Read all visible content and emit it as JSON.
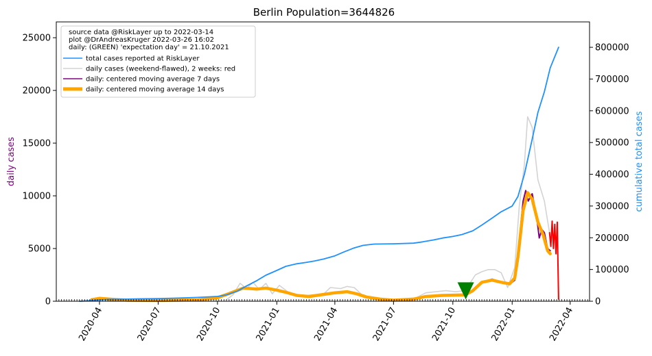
{
  "chart_data": {
    "type": "line",
    "title": "Berlin Population=3644826",
    "ylabel_left": "daily cases",
    "ylabel_right": "cumulative total cases",
    "ylim_left": [
      0,
      26500
    ],
    "ylim_right": [
      0,
      880000
    ],
    "yticks_left": [
      0,
      5000,
      10000,
      15000,
      20000,
      25000
    ],
    "yticks_right": [
      0,
      100000,
      200000,
      300000,
      400000,
      500000,
      600000,
      700000,
      800000
    ],
    "xlim": [
      "2020-01-25",
      "2022-05-01"
    ],
    "xtick_labels": [
      "2020-04",
      "2020-07",
      "2020-10",
      "2021-01",
      "2021-04",
      "2021-07",
      "2021-10",
      "2022-01",
      "2022-04"
    ],
    "legend": {
      "position": "upper-left",
      "header_lines": [
        "source data @RiskLayer up to 2022-03-14",
        "plot @DrAndreasKruger 2022-03-26 16:02",
        "daily: (GREEN) 'expectation day' = 21.10.2021"
      ],
      "entries": [
        {
          "label": "total cases reported at RiskLayer",
          "color": "#1e90ff",
          "width": 1.6
        },
        {
          "label": "daily cases (weekend-flawed), 2 weeks: red",
          "color": "#d3d3d3",
          "width": 1.6
        },
        {
          "label": "daily: centered moving average 7 days",
          "color": "#800080",
          "width": 1.6
        },
        {
          "label": "daily: centered moving average 14 days",
          "color": "#ffa500",
          "width": 5
        }
      ]
    },
    "colors": {
      "total": "#1e90ff",
      "daily": "#d3d3d3",
      "daily_recent": "#ff0000",
      "ma7": "#800080",
      "ma14": "#ffa500",
      "marker": "#008000",
      "left_label": "#800080",
      "right_label": "#1e90ff"
    },
    "expectation_marker": {
      "date": "2021-10-21",
      "value": 950
    },
    "series": [
      {
        "name": "total cases reported at RiskLayer",
        "axis": "right",
        "points": [
          [
            "2020-03-01",
            100
          ],
          [
            "2020-03-15",
            1500
          ],
          [
            "2020-04-01",
            4000
          ],
          [
            "2020-04-15",
            5500
          ],
          [
            "2020-05-01",
            6300
          ],
          [
            "2020-06-01",
            7500
          ],
          [
            "2020-07-01",
            8500
          ],
          [
            "2020-08-01",
            10000
          ],
          [
            "2020-09-01",
            12000
          ],
          [
            "2020-10-01",
            15000
          ],
          [
            "2020-10-15",
            20000
          ],
          [
            "2020-11-01",
            32000
          ],
          [
            "2020-11-15",
            48000
          ],
          [
            "2020-12-01",
            65000
          ],
          [
            "2020-12-15",
            82000
          ],
          [
            "2021-01-01",
            97000
          ],
          [
            "2021-01-15",
            110000
          ],
          [
            "2021-02-01",
            118000
          ],
          [
            "2021-02-15",
            122000
          ],
          [
            "2021-03-01",
            127000
          ],
          [
            "2021-03-15",
            133000
          ],
          [
            "2021-04-01",
            143000
          ],
          [
            "2021-04-15",
            155000
          ],
          [
            "2021-05-01",
            168000
          ],
          [
            "2021-05-15",
            176000
          ],
          [
            "2021-06-01",
            180000
          ],
          [
            "2021-07-01",
            181000
          ],
          [
            "2021-08-01",
            183000
          ],
          [
            "2021-08-15",
            187000
          ],
          [
            "2021-09-01",
            193000
          ],
          [
            "2021-09-15",
            199000
          ],
          [
            "2021-10-01",
            204000
          ],
          [
            "2021-10-15",
            210000
          ],
          [
            "2021-11-01",
            222000
          ],
          [
            "2021-11-15",
            240000
          ],
          [
            "2021-12-01",
            262000
          ],
          [
            "2021-12-15",
            282000
          ],
          [
            "2022-01-01",
            300000
          ],
          [
            "2022-01-10",
            330000
          ],
          [
            "2022-01-20",
            400000
          ],
          [
            "2022-02-01",
            510000
          ],
          [
            "2022-02-10",
            595000
          ],
          [
            "2022-02-20",
            660000
          ],
          [
            "2022-03-01",
            735000
          ],
          [
            "2022-03-14",
            800000
          ]
        ]
      },
      {
        "name": "daily cases (weekend-flawed), 2 weeks: red",
        "axis": "left",
        "points": [
          [
            "2020-10-15",
            150
          ],
          [
            "2020-10-25",
            600
          ],
          [
            "2020-11-05",
            1700
          ],
          [
            "2020-11-15",
            1200
          ],
          [
            "2020-11-25",
            1800
          ],
          [
            "2020-12-05",
            1100
          ],
          [
            "2020-12-15",
            1700
          ],
          [
            "2020-12-25",
            700
          ],
          [
            "2021-01-05",
            1500
          ],
          [
            "2021-01-20",
            800
          ],
          [
            "2021-02-05",
            500
          ],
          [
            "2021-02-25",
            600
          ],
          [
            "2021-03-15",
            700
          ],
          [
            "2021-03-25",
            1300
          ],
          [
            "2021-04-10",
            1200
          ],
          [
            "2021-04-20",
            1400
          ],
          [
            "2021-05-01",
            1300
          ],
          [
            "2021-05-15",
            500
          ],
          [
            "2021-06-01",
            300
          ],
          [
            "2021-07-01",
            150
          ],
          [
            "2021-08-01",
            200
          ],
          [
            "2021-08-20",
            800
          ],
          [
            "2021-09-05",
            900
          ],
          [
            "2021-09-20",
            1000
          ],
          [
            "2021-10-05",
            900
          ],
          [
            "2021-10-20",
            1000
          ],
          [
            "2021-11-05",
            2500
          ],
          [
            "2021-11-15",
            2800
          ],
          [
            "2021-11-25",
            3000
          ],
          [
            "2021-12-05",
            3000
          ],
          [
            "2021-12-15",
            2700
          ],
          [
            "2021-12-25",
            1300
          ],
          [
            "2022-01-05",
            3200
          ],
          [
            "2022-01-12",
            9000
          ],
          [
            "2022-01-20",
            13000
          ],
          [
            "2022-01-25",
            17500
          ],
          [
            "2022-02-01",
            16500
          ],
          [
            "2022-02-10",
            11500
          ],
          [
            "2022-02-20",
            9500
          ],
          [
            "2022-02-28",
            6500
          ]
        ]
      },
      {
        "name": "daily cases, last 2 weeks",
        "axis": "left",
        "points": [
          [
            "2022-02-28",
            6500
          ],
          [
            "2022-03-02",
            5200
          ],
          [
            "2022-03-04",
            7600
          ],
          [
            "2022-03-06",
            5000
          ],
          [
            "2022-03-08",
            7300
          ],
          [
            "2022-03-10",
            4500
          ],
          [
            "2022-03-12",
            7500
          ],
          [
            "2022-03-13",
            3500
          ],
          [
            "2022-03-14",
            200
          ]
        ]
      },
      {
        "name": "daily: centered moving average 7 days",
        "axis": "left",
        "points": [
          [
            "2020-03-20",
            150
          ],
          [
            "2020-04-01",
            280
          ],
          [
            "2020-04-20",
            200
          ],
          [
            "2020-05-15",
            100
          ],
          [
            "2020-07-01",
            70
          ],
          [
            "2020-09-01",
            130
          ],
          [
            "2020-10-01",
            350
          ],
          [
            "2020-10-20",
            800
          ],
          [
            "2020-11-10",
            1300
          ],
          [
            "2020-12-01",
            1200
          ],
          [
            "2020-12-15",
            1300
          ],
          [
            "2021-01-01",
            1100
          ],
          [
            "2021-01-15",
            900
          ],
          [
            "2021-02-01",
            550
          ],
          [
            "2021-02-20",
            450
          ],
          [
            "2021-03-15",
            700
          ],
          [
            "2021-04-01",
            850
          ],
          [
            "2021-04-20",
            950
          ],
          [
            "2021-05-05",
            700
          ],
          [
            "2021-05-20",
            400
          ],
          [
            "2021-06-10",
            200
          ],
          [
            "2021-07-01",
            100
          ],
          [
            "2021-08-01",
            200
          ],
          [
            "2021-08-20",
            500
          ],
          [
            "2021-09-15",
            600
          ],
          [
            "2021-10-20",
            600
          ],
          [
            "2021-11-01",
            1000
          ],
          [
            "2021-11-15",
            1800
          ],
          [
            "2021-12-01",
            2100
          ],
          [
            "2021-12-15",
            1800
          ],
          [
            "2021-12-28",
            1600
          ],
          [
            "2022-01-05",
            2000
          ],
          [
            "2022-01-10",
            4500
          ],
          [
            "2022-01-18",
            9500
          ],
          [
            "2022-01-22",
            10500
          ],
          [
            "2022-01-26",
            9500
          ],
          [
            "2022-02-01",
            10200
          ],
          [
            "2022-02-08",
            8000
          ],
          [
            "2022-02-12",
            6000
          ],
          [
            "2022-02-16",
            6800
          ],
          [
            "2022-02-20",
            6500
          ],
          [
            "2022-02-25",
            5000
          ],
          [
            "2022-03-01",
            4800
          ]
        ]
      },
      {
        "name": "daily: centered moving average 14 days",
        "axis": "left",
        "points": [
          [
            "2020-03-20",
            150
          ],
          [
            "2020-04-01",
            270
          ],
          [
            "2020-04-20",
            190
          ],
          [
            "2020-05-15",
            100
          ],
          [
            "2020-07-01",
            70
          ],
          [
            "2020-09-01",
            130
          ],
          [
            "2020-10-01",
            330
          ],
          [
            "2020-10-20",
            750
          ],
          [
            "2020-11-10",
            1250
          ],
          [
            "2020-12-01",
            1150
          ],
          [
            "2020-12-15",
            1250
          ],
          [
            "2021-01-01",
            1050
          ],
          [
            "2021-01-15",
            850
          ],
          [
            "2021-02-01",
            550
          ],
          [
            "2021-02-20",
            450
          ],
          [
            "2021-03-15",
            650
          ],
          [
            "2021-04-01",
            800
          ],
          [
            "2021-04-20",
            900
          ],
          [
            "2021-05-05",
            700
          ],
          [
            "2021-05-20",
            400
          ],
          [
            "2021-06-10",
            200
          ],
          [
            "2021-07-01",
            100
          ],
          [
            "2021-08-01",
            200
          ],
          [
            "2021-08-20",
            450
          ],
          [
            "2021-09-15",
            550
          ],
          [
            "2021-10-20",
            600
          ],
          [
            "2021-11-01",
            1000
          ],
          [
            "2021-11-15",
            1800
          ],
          [
            "2021-12-01",
            2000
          ],
          [
            "2021-12-15",
            1800
          ],
          [
            "2021-12-28",
            1650
          ],
          [
            "2022-01-05",
            2200
          ],
          [
            "2022-01-10",
            4200
          ],
          [
            "2022-01-18",
            8600
          ],
          [
            "2022-01-25",
            10300
          ],
          [
            "2022-02-01",
            9700
          ],
          [
            "2022-02-10",
            7500
          ],
          [
            "2022-02-18",
            6300
          ],
          [
            "2022-02-25",
            4800
          ],
          [
            "2022-03-01",
            4500
          ]
        ]
      }
    ]
  }
}
